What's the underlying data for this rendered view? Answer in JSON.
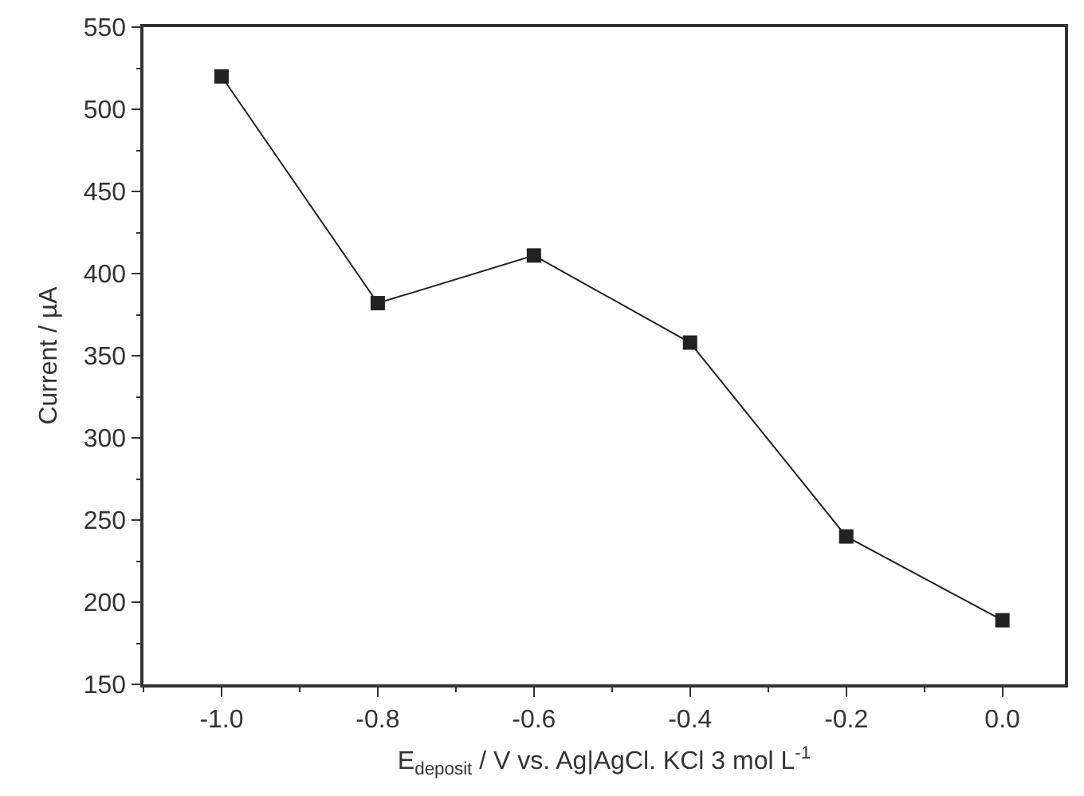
{
  "chart_data": {
    "type": "line",
    "xlabel": "E$_{deposit}$ / V vs. Ag|AgCl. KCl 3 mol L$^{-1}$",
    "ylabel": "Current / µA",
    "x": [
      -1.0,
      -0.8,
      -0.6,
      -0.4,
      -0.2,
      0.0
    ],
    "series": [
      {
        "color": "#222222",
        "values": [
          520,
          382,
          411,
          358,
          240,
          189
        ]
      }
    ],
    "xlim": [
      -1.1,
      0.08
    ],
    "xticks": [
      {
        "value": -1.0,
        "label": "-1.0"
      },
      {
        "value": -0.8,
        "label": "-0.8"
      },
      {
        "value": -0.6,
        "label": "-0.6"
      },
      {
        "value": -0.4,
        "label": "-0.4"
      },
      {
        "value": -0.2,
        "label": "-0.2"
      },
      {
        "value": 0.0,
        "label": "0.0"
      }
    ],
    "ylim": [
      150,
      550
    ],
    "yticks": [
      150,
      200,
      250,
      300,
      350,
      400,
      450,
      500,
      550
    ],
    "marker": "square",
    "line_style": "solid",
    "grid": false
  }
}
